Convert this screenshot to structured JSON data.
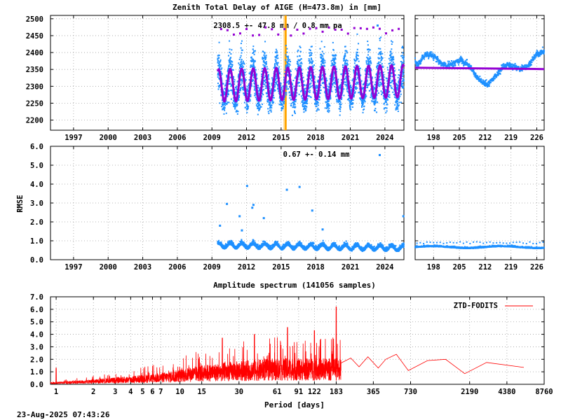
{
  "timestamp": "23-Aug-2025 07:43:26",
  "colors": {
    "ztd_points": "#1e90ff",
    "model_curve": "#9400d3",
    "outlier": "#9400d3",
    "event_band": "#ffa500",
    "event_line": "#ffd27a",
    "rmse_points": "#1e90ff",
    "spectrum": "#ff0000",
    "grid": "#a0a0a0",
    "axis": "#000000"
  },
  "chart_data": [
    {
      "id": "ztd_timeseries",
      "type": "scatter",
      "title": "Zenith Total Delay of AIGE (H=473.8m) in [mm]",
      "annotation": "2308.5 +-  47.8 mm /  0.8 mm pa",
      "xlabel": "",
      "ylabel": "",
      "xlim": [
        1995.0,
        2025.65
      ],
      "ylim": [
        2170,
        2510
      ],
      "x_ticks": [
        1997,
        2000,
        2003,
        2006,
        2009,
        2012,
        2015,
        2018,
        2021,
        2024
      ],
      "y_ticks": [
        2200,
        2250,
        2300,
        2350,
        2400,
        2450,
        2500
      ],
      "data_start": 2009.5,
      "data_end": 2025.65,
      "annual_amplitude_mm": 47.8,
      "mean_mm": 2308.5,
      "trend_mm_per_year": 0.8,
      "event_band": [
        2015.3,
        2015.45
      ],
      "grid": true
    },
    {
      "id": "ztd_recent",
      "type": "scatter",
      "title": "",
      "xlabel": "",
      "ylabel": "",
      "xlim": [
        193,
        228
      ],
      "ylim": [
        2170,
        2510
      ],
      "x_ticks": [
        198,
        205,
        212,
        219,
        226
      ],
      "model_level_mm": 2355,
      "grid": true
    },
    {
      "id": "rmse_timeseries",
      "type": "scatter",
      "title": "",
      "annotation": "0.67 +-  0.14 mm",
      "xlabel": "",
      "ylabel": "RMSE",
      "xlim": [
        1995.0,
        2025.65
      ],
      "ylim": [
        0.0,
        6.0
      ],
      "x_ticks": [
        1997,
        2000,
        2003,
        2006,
        2009,
        2012,
        2015,
        2018,
        2021,
        2024
      ],
      "y_ticks": [
        "0.0",
        "1.0",
        "2.0",
        "3.0",
        "4.0",
        "5.0",
        "6.0"
      ],
      "outliers": [
        {
          "x": 2009.7,
          "y": 1.8
        },
        {
          "x": 2010.3,
          "y": 2.95
        },
        {
          "x": 2011.4,
          "y": 2.3
        },
        {
          "x": 2011.6,
          "y": 1.55
        },
        {
          "x": 2012.05,
          "y": 3.9
        },
        {
          "x": 2012.5,
          "y": 2.75
        },
        {
          "x": 2012.6,
          "y": 2.9
        },
        {
          "x": 2013.5,
          "y": 2.2
        },
        {
          "x": 2015.5,
          "y": 3.7
        },
        {
          "x": 2016.6,
          "y": 3.85
        },
        {
          "x": 2017.7,
          "y": 2.6
        },
        {
          "x": 2018.6,
          "y": 1.6
        },
        {
          "x": 2025.6,
          "y": 2.3
        }
      ],
      "grid": true
    },
    {
      "id": "rmse_recent",
      "type": "scatter",
      "title": "",
      "xlabel": "",
      "ylabel": "",
      "xlim": [
        193,
        228
      ],
      "ylim": [
        0.0,
        6.0
      ],
      "x_ticks": [
        198,
        205,
        212,
        219,
        226
      ],
      "level": 0.67,
      "grid": true
    },
    {
      "id": "amplitude_spectrum",
      "type": "line",
      "title": "Amplitude spectrum (141056 samples)",
      "xlabel": "Period [days]",
      "ylabel": "",
      "x_scale": "log",
      "xlim": [
        0.9,
        8760
      ],
      "ylim": [
        0.0,
        7.0
      ],
      "x_ticks": [
        1,
        2,
        3,
        4,
        5,
        6,
        7,
        10,
        15,
        30,
        61,
        91,
        122,
        183,
        365,
        730,
        2190,
        4380,
        8760
      ],
      "x_tick_labels": [
        "1",
        "2",
        "3",
        "4",
        "5",
        "6",
        "7",
        "10",
        "15",
        "30",
        "61",
        "91",
        "122",
        "183",
        "365",
        "730",
        "2190",
        "4380",
        "8760"
      ],
      "y_ticks": [
        "0.0",
        "1.0",
        "2.0",
        "3.0",
        "4.0",
        "5.0",
        "6.0",
        "7.0"
      ],
      "legend": "ZTD-FODITS",
      "legend_position": "top-right",
      "peaks": [
        {
          "period": 1.0,
          "amp": 1.3
        },
        {
          "period": 22,
          "amp": 3.7
        },
        {
          "period": 40,
          "amp": 4.0
        },
        {
          "period": 74,
          "amp": 4.55
        },
        {
          "period": 122,
          "amp": 4.3
        },
        {
          "period": 183,
          "amp": 6.2
        }
      ],
      "envelope": [
        {
          "period": 0.9,
          "amp": 0.15
        },
        {
          "period": 2,
          "amp": 0.35
        },
        {
          "period": 4,
          "amp": 0.6
        },
        {
          "period": 8,
          "amp": 0.9
        },
        {
          "period": 15,
          "amp": 1.4
        },
        {
          "period": 30,
          "amp": 1.7
        },
        {
          "period": 60,
          "amp": 1.9
        },
        {
          "period": 120,
          "amp": 1.9
        },
        {
          "period": 183,
          "amp": 1.9
        }
      ],
      "tail": [
        {
          "period": 200,
          "amp": 1.7
        },
        {
          "period": 240,
          "amp": 2.1
        },
        {
          "period": 280,
          "amp": 1.4
        },
        {
          "period": 330,
          "amp": 2.2
        },
        {
          "period": 400,
          "amp": 1.3
        },
        {
          "period": 460,
          "amp": 2.0
        },
        {
          "period": 560,
          "amp": 2.4
        },
        {
          "period": 700,
          "amp": 1.1
        },
        {
          "period": 1000,
          "amp": 1.9
        },
        {
          "period": 1400,
          "amp": 2.0
        },
        {
          "period": 2000,
          "amp": 0.85
        },
        {
          "period": 3000,
          "amp": 1.75
        },
        {
          "period": 6000,
          "amp": 1.35
        }
      ],
      "grid": true
    }
  ]
}
